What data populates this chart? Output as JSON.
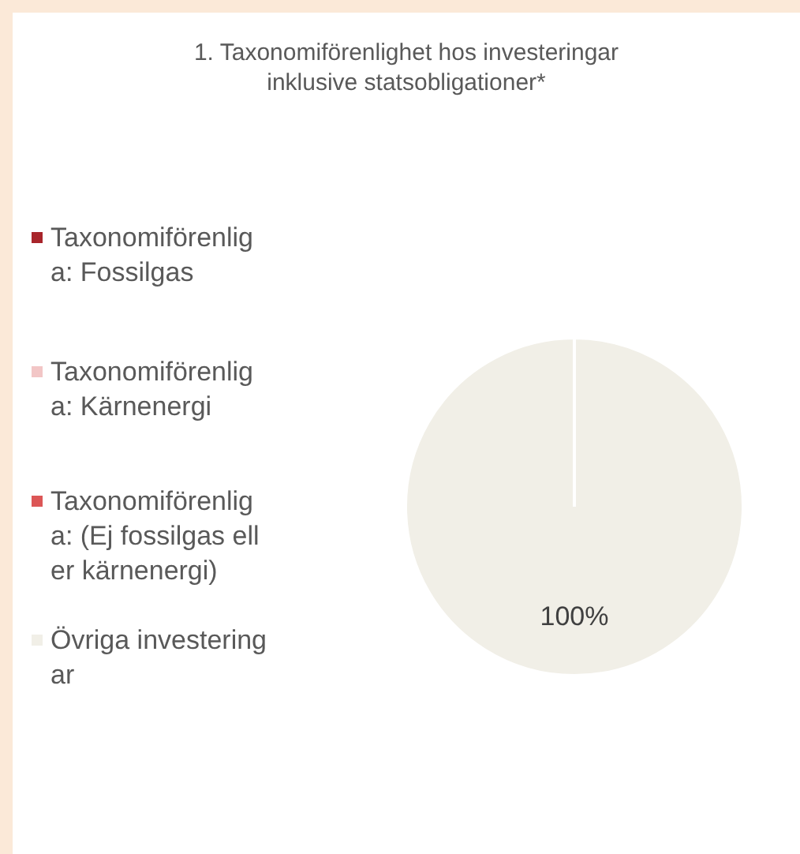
{
  "chart_data": {
    "type": "pie",
    "title": "1. Taxonomiförenlighet hos investeringar inklusive statsobligationer*",
    "categories": [
      "Taxonomiförenliga: Fossilgas",
      "Taxonomiförenliga: Kärnenergi",
      "Taxonomiförenliga: (Ej fossilgas eller kärnenergi)",
      "Övriga investeringar"
    ],
    "values": [
      0,
      0,
      0,
      100
    ],
    "colors": [
      "#a8252b",
      "#f2c6c6",
      "#dc5656",
      "#f1efe7"
    ],
    "value_labels": [
      null,
      null,
      null,
      "100%"
    ],
    "legend": "left"
  }
}
